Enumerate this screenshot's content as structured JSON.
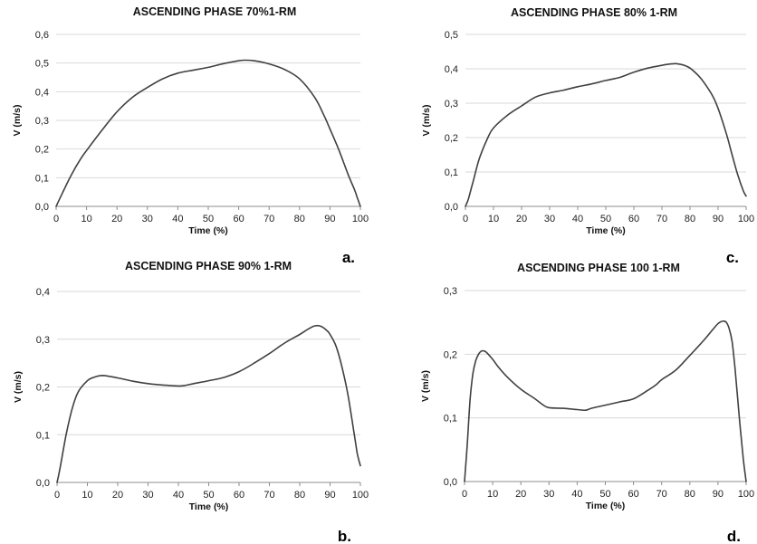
{
  "chart_data": [
    {
      "type": "line",
      "title": "ASCENDING PHASE 70%1-RM",
      "xlabel": "Time (%)",
      "ylabel": "V (m/s)",
      "panel_label": "a.",
      "xlim": [
        0,
        100
      ],
      "ylim": [
        0,
        0.6
      ],
      "xticks": [
        "0",
        "10",
        "20",
        "30",
        "40",
        "50",
        "60",
        "70",
        "80",
        "90",
        "100"
      ],
      "yticks": [
        "0,0",
        "0,1",
        "0,2",
        "0,3",
        "0,4",
        "0,5",
        "0,6"
      ],
      "grid": true,
      "series": [
        {
          "x": [
            0,
            2,
            5,
            8,
            10,
            15,
            20,
            25,
            30,
            35,
            40,
            45,
            50,
            55,
            60,
            62,
            65,
            70,
            75,
            80,
            85,
            88,
            90,
            93,
            96,
            98,
            99,
            100
          ],
          "y": [
            0,
            0.045,
            0.11,
            0.165,
            0.195,
            0.265,
            0.33,
            0.38,
            0.415,
            0.445,
            0.465,
            0.475,
            0.485,
            0.498,
            0.508,
            0.51,
            0.508,
            0.497,
            0.478,
            0.445,
            0.38,
            0.318,
            0.27,
            0.195,
            0.11,
            0.06,
            0.03,
            0
          ]
        }
      ]
    },
    {
      "type": "line",
      "title": "ASCENDING PHASE 80% 1-RM",
      "xlabel": "Time (%)",
      "ylabel": "V (m/s)",
      "panel_label": "c.",
      "xlim": [
        0,
        100
      ],
      "ylim": [
        0,
        0.5
      ],
      "xticks": [
        "0",
        "10",
        "20",
        "30",
        "40",
        "50",
        "60",
        "70",
        "80",
        "90",
        "100"
      ],
      "yticks": [
        "0,0",
        "0,1",
        "0,2",
        "0,3",
        "0,4",
        "0,5"
      ],
      "grid": true,
      "series": [
        {
          "x": [
            0,
            1,
            2,
            3,
            5,
            8,
            10,
            15,
            20,
            25,
            30,
            35,
            40,
            45,
            50,
            55,
            60,
            65,
            70,
            72,
            75,
            78,
            80,
            83,
            85,
            88,
            90,
            93,
            95,
            97,
            99,
            100
          ],
          "y": [
            0,
            0.02,
            0.05,
            0.08,
            0.14,
            0.2,
            0.228,
            0.265,
            0.292,
            0.318,
            0.33,
            0.338,
            0.348,
            0.356,
            0.366,
            0.375,
            0.39,
            0.402,
            0.41,
            0.413,
            0.415,
            0.41,
            0.402,
            0.38,
            0.36,
            0.322,
            0.285,
            0.21,
            0.15,
            0.092,
            0.045,
            0.03
          ]
        }
      ]
    },
    {
      "type": "line",
      "title": "ASCENDING PHASE 90% 1-RM",
      "xlabel": "Time (%)",
      "ylabel": "V (m/s)",
      "panel_label": "b.",
      "xlim": [
        0,
        100
      ],
      "ylim": [
        0,
        0.4
      ],
      "xticks": [
        "0",
        "10",
        "20",
        "30",
        "40",
        "50",
        "60",
        "70",
        "80",
        "90",
        "100"
      ],
      "yticks": [
        "0,0",
        "0,1",
        "0,2",
        "0,3",
        "0,4"
      ],
      "grid": true,
      "series": [
        {
          "x": [
            0,
            1,
            3,
            5,
            7,
            10,
            12,
            15,
            20,
            25,
            30,
            35,
            40,
            42,
            45,
            50,
            55,
            60,
            65,
            70,
            75,
            80,
            83,
            85,
            87,
            89,
            90,
            92,
            94,
            96,
            98,
            99,
            100
          ],
          "y": [
            0,
            0.03,
            0.1,
            0.155,
            0.19,
            0.213,
            0.22,
            0.224,
            0.219,
            0.212,
            0.207,
            0.204,
            0.202,
            0.203,
            0.207,
            0.213,
            0.22,
            0.232,
            0.25,
            0.27,
            0.292,
            0.31,
            0.322,
            0.328,
            0.327,
            0.318,
            0.31,
            0.285,
            0.24,
            0.18,
            0.1,
            0.06,
            0.035
          ]
        }
      ]
    },
    {
      "type": "line",
      "title": "ASCENDING PHASE 100 1-RM",
      "xlabel": "Time (%)",
      "ylabel": "V (m/s)",
      "panel_label": "d.",
      "xlim": [
        0,
        100
      ],
      "ylim": [
        0,
        0.3
      ],
      "xticks": [
        "0",
        "10",
        "20",
        "30",
        "40",
        "50",
        "60",
        "70",
        "80",
        "90",
        "100"
      ],
      "yticks": [
        "0,0",
        "0,1",
        "0,2",
        "0,3"
      ],
      "grid": true,
      "series": [
        {
          "x": [
            0,
            1,
            2,
            3,
            4,
            5,
            6,
            7,
            8,
            10,
            12,
            15,
            20,
            25,
            28,
            30,
            35,
            40,
            43,
            45,
            50,
            55,
            60,
            65,
            68,
            70,
            75,
            80,
            85,
            88,
            90,
            91,
            92,
            93,
            94,
            95,
            96,
            97,
            98,
            99,
            100
          ],
          "y": [
            0,
            0.06,
            0.13,
            0.17,
            0.19,
            0.2,
            0.205,
            0.205,
            0.202,
            0.192,
            0.18,
            0.165,
            0.145,
            0.13,
            0.12,
            0.116,
            0.115,
            0.113,
            0.112,
            0.115,
            0.12,
            0.125,
            0.13,
            0.143,
            0.152,
            0.16,
            0.175,
            0.198,
            0.222,
            0.238,
            0.248,
            0.251,
            0.252,
            0.25,
            0.24,
            0.22,
            0.18,
            0.13,
            0.08,
            0.035,
            0
          ]
        }
      ]
    }
  ]
}
